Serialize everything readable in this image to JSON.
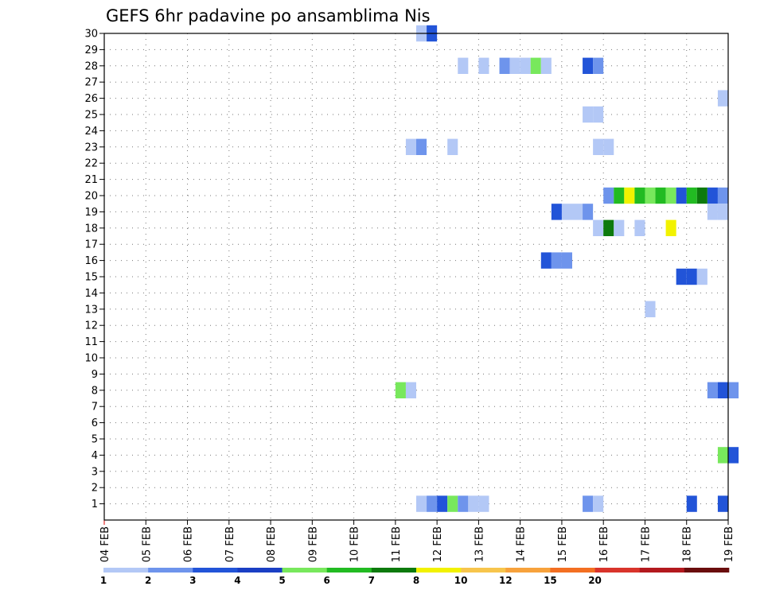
{
  "chart_data": {
    "type": "heatmap",
    "title": "GEFS 6hr padavine po ansamblima Nis",
    "xlabel": "",
    "ylabel": "",
    "x_tick_labels": [
      "04 FEB",
      "05 FEB",
      "06 FEB",
      "07 FEB",
      "08 FEB",
      "09 FEB",
      "10 FEB",
      "11 FEB",
      "12 FEB",
      "13 FEB",
      "14 FEB",
      "15 FEB",
      "16 FEB",
      "17 FEB",
      "18 FEB",
      "19 FEB"
    ],
    "y_tick_labels": [
      "1",
      "2",
      "3",
      "4",
      "5",
      "6",
      "7",
      "8",
      "9",
      "10",
      "11",
      "12",
      "13",
      "14",
      "15",
      "16",
      "17",
      "18",
      "19",
      "20",
      "21",
      "22",
      "23",
      "24",
      "25",
      "26",
      "27",
      "28",
      "29",
      "30"
    ],
    "xlim_days": [
      0,
      15
    ],
    "ylim_members": [
      0,
      30
    ],
    "grid": true,
    "colorbar": {
      "levels": [
        "1",
        "2",
        "3",
        "4",
        "5",
        "6",
        "7",
        "8",
        "10",
        "12",
        "15",
        "20"
      ],
      "colors": [
        "#b3c8f6",
        "#6e94ec",
        "#2254d8",
        "#1a3fc4",
        "#78e85c",
        "#22bb22",
        "#0d7a0d",
        "#f2f200",
        "#f7c54c",
        "#f7a23c",
        "#f36f22",
        "#d9342b",
        "#b3191e",
        "#6a0d0d"
      ]
    },
    "cells_note": "each cell: member row, start day offset from 04 FEB (0.25 = 6 h), level index into colorbar.colors",
    "cells": [
      {
        "member": 30,
        "day": 7.5,
        "level": 0
      },
      {
        "member": 30,
        "day": 7.75,
        "level": 2
      },
      {
        "member": 28,
        "day": 8.5,
        "level": 0
      },
      {
        "member": 28,
        "day": 9.0,
        "level": 0
      },
      {
        "member": 28,
        "day": 9.5,
        "level": 1
      },
      {
        "member": 28,
        "day": 9.75,
        "level": 0
      },
      {
        "member": 28,
        "day": 10.0,
        "level": 0
      },
      {
        "member": 28,
        "day": 10.25,
        "level": 4
      },
      {
        "member": 28,
        "day": 10.5,
        "level": 0
      },
      {
        "member": 28,
        "day": 11.5,
        "level": 2
      },
      {
        "member": 28,
        "day": 11.75,
        "level": 1
      },
      {
        "member": 26,
        "day": 14.75,
        "level": 0
      },
      {
        "member": 25,
        "day": 11.5,
        "level": 0
      },
      {
        "member": 25,
        "day": 11.75,
        "level": 0
      },
      {
        "member": 23,
        "day": 7.25,
        "level": 0
      },
      {
        "member": 23,
        "day": 7.5,
        "level": 1
      },
      {
        "member": 23,
        "day": 8.25,
        "level": 0
      },
      {
        "member": 23,
        "day": 11.75,
        "level": 0
      },
      {
        "member": 23,
        "day": 12.0,
        "level": 0
      },
      {
        "member": 20,
        "day": 12.0,
        "level": 1
      },
      {
        "member": 20,
        "day": 12.25,
        "level": 5
      },
      {
        "member": 20,
        "day": 12.5,
        "level": 7
      },
      {
        "member": 20,
        "day": 12.75,
        "level": 5
      },
      {
        "member": 20,
        "day": 13.0,
        "level": 4
      },
      {
        "member": 20,
        "day": 13.25,
        "level": 5
      },
      {
        "member": 20,
        "day": 13.5,
        "level": 4
      },
      {
        "member": 20,
        "day": 13.75,
        "level": 2
      },
      {
        "member": 20,
        "day": 14.0,
        "level": 5
      },
      {
        "member": 20,
        "day": 14.25,
        "level": 6
      },
      {
        "member": 20,
        "day": 14.5,
        "level": 2
      },
      {
        "member": 20,
        "day": 14.75,
        "level": 1
      },
      {
        "member": 19,
        "day": 10.75,
        "level": 2
      },
      {
        "member": 19,
        "day": 11.0,
        "level": 0
      },
      {
        "member": 19,
        "day": 11.25,
        "level": 0
      },
      {
        "member": 19,
        "day": 11.5,
        "level": 1
      },
      {
        "member": 19,
        "day": 14.5,
        "level": 0
      },
      {
        "member": 19,
        "day": 14.75,
        "level": 0
      },
      {
        "member": 18,
        "day": 11.75,
        "level": 0
      },
      {
        "member": 18,
        "day": 12.0,
        "level": 6
      },
      {
        "member": 18,
        "day": 12.25,
        "level": 0
      },
      {
        "member": 18,
        "day": 12.75,
        "level": 0
      },
      {
        "member": 18,
        "day": 13.5,
        "level": 7
      },
      {
        "member": 16,
        "day": 10.5,
        "level": 2
      },
      {
        "member": 16,
        "day": 10.75,
        "level": 1
      },
      {
        "member": 16,
        "day": 11.0,
        "level": 1
      },
      {
        "member": 15,
        "day": 13.75,
        "level": 2
      },
      {
        "member": 15,
        "day": 14.0,
        "level": 2
      },
      {
        "member": 15,
        "day": 14.25,
        "level": 0
      },
      {
        "member": 13,
        "day": 13.0,
        "level": 0
      },
      {
        "member": 8,
        "day": 7.0,
        "level": 4
      },
      {
        "member": 8,
        "day": 7.25,
        "level": 0
      },
      {
        "member": 8,
        "day": 14.5,
        "level": 1
      },
      {
        "member": 8,
        "day": 14.75,
        "level": 2
      },
      {
        "member": 8,
        "day": 15.0,
        "level": 1
      },
      {
        "member": 4,
        "day": 14.75,
        "level": 4
      },
      {
        "member": 4,
        "day": 15.0,
        "level": 2
      },
      {
        "member": 1,
        "day": 7.5,
        "level": 0
      },
      {
        "member": 1,
        "day": 7.75,
        "level": 1
      },
      {
        "member": 1,
        "day": 8.0,
        "level": 2
      },
      {
        "member": 1,
        "day": 8.25,
        "level": 4
      },
      {
        "member": 1,
        "day": 8.5,
        "level": 1
      },
      {
        "member": 1,
        "day": 8.75,
        "level": 0
      },
      {
        "member": 1,
        "day": 9.0,
        "level": 0
      },
      {
        "member": 1,
        "day": 11.5,
        "level": 1
      },
      {
        "member": 1,
        "day": 11.75,
        "level": 0
      },
      {
        "member": 1,
        "day": 14.0,
        "level": 2
      },
      {
        "member": 1,
        "day": 14.75,
        "level": 2
      }
    ]
  }
}
